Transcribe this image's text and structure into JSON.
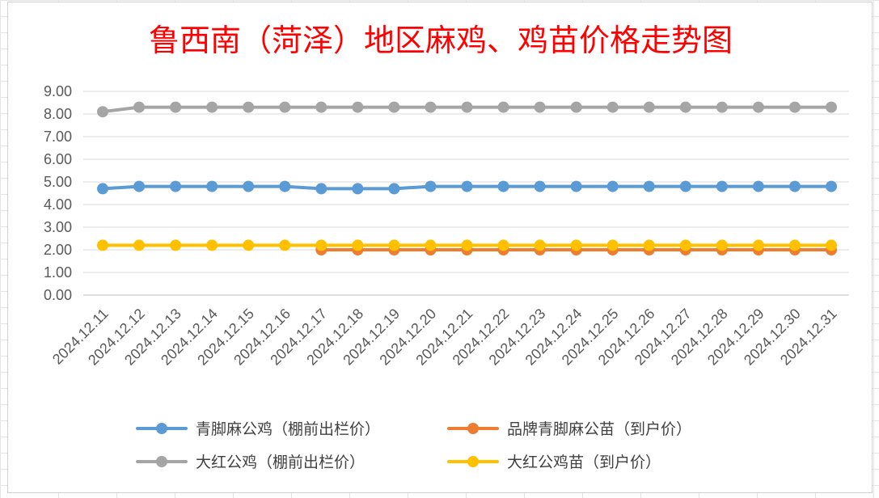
{
  "chart_data": {
    "type": "line",
    "title": "鲁西南（菏泽）地区麻鸡、鸡苗价格走势图",
    "categories": [
      "2024.12.11",
      "2024.12.12",
      "2024.12.13",
      "2024.12.14",
      "2024.12.15",
      "2024.12.16",
      "2024.12.17",
      "2024.12.18",
      "2024.12.19",
      "2024.12.20",
      "2024.12.21",
      "2024.12.22",
      "2024.12.23",
      "2024.12.24",
      "2024.12.25",
      "2024.12.26",
      "2024.12.27",
      "2024.12.28",
      "2024.12.29",
      "2024.12.30",
      "2024.12.31"
    ],
    "yticks": [
      "0.00",
      "1.00",
      "2.00",
      "3.00",
      "4.00",
      "5.00",
      "6.00",
      "7.00",
      "8.00",
      "9.00"
    ],
    "ylim": [
      0,
      9
    ],
    "grid": true,
    "legend_position": "bottom",
    "series": [
      {
        "name": "青脚麻公鸡（棚前出栏价）",
        "color": "#5b9bd5",
        "values": [
          4.7,
          4.8,
          4.8,
          4.8,
          4.8,
          4.8,
          4.7,
          4.7,
          4.7,
          4.8,
          4.8,
          4.8,
          4.8,
          4.8,
          4.8,
          4.8,
          4.8,
          4.8,
          4.8,
          4.8,
          4.8
        ]
      },
      {
        "name": "品牌青脚麻公苗（到户价）",
        "color": "#ed7d31",
        "values": [
          null,
          null,
          null,
          null,
          null,
          null,
          2.0,
          2.0,
          2.0,
          2.0,
          2.0,
          2.0,
          2.0,
          2.0,
          2.0,
          2.0,
          2.0,
          2.0,
          2.0,
          2.0,
          2.0
        ]
      },
      {
        "name": "大红公鸡（棚前出栏价）",
        "color": "#a5a5a5",
        "values": [
          8.1,
          8.3,
          8.3,
          8.3,
          8.3,
          8.3,
          8.3,
          8.3,
          8.3,
          8.3,
          8.3,
          8.3,
          8.3,
          8.3,
          8.3,
          8.3,
          8.3,
          8.3,
          8.3,
          8.3,
          8.3
        ]
      },
      {
        "name": "大红公鸡苗（到户价）",
        "color": "#ffc000",
        "values": [
          2.2,
          2.2,
          2.2,
          2.2,
          2.2,
          2.2,
          2.2,
          2.2,
          2.2,
          2.2,
          2.2,
          2.2,
          2.2,
          2.2,
          2.2,
          2.2,
          2.2,
          2.2,
          2.2,
          2.2,
          2.2
        ]
      }
    ]
  }
}
